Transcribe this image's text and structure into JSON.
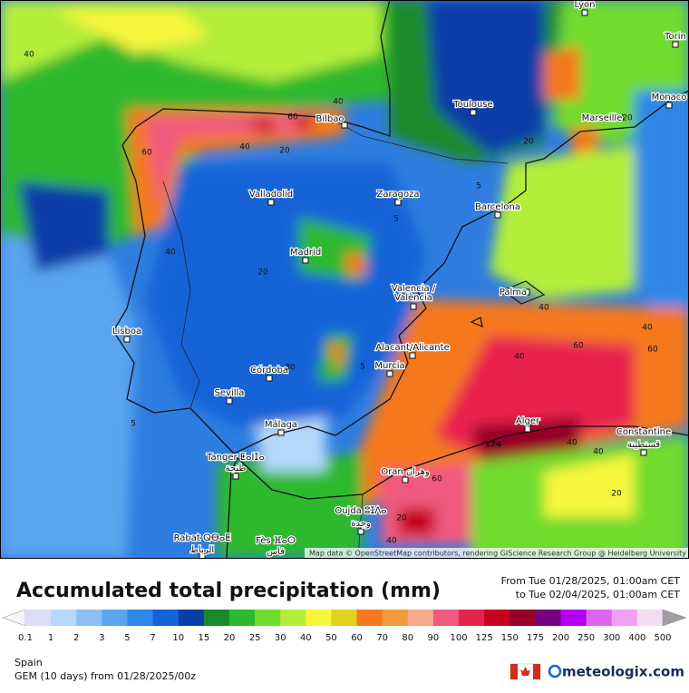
{
  "map": {
    "places": [
      "Lyon",
      "Torin",
      "Monaco",
      "Toulouse",
      "Marseille",
      "Bilbao",
      "Valladolid",
      "Zaragoza",
      "Barcelona",
      "Madrid",
      "Palma",
      "Valencia /",
      "València",
      "Lisboa",
      "Alacant/Alicante",
      "Murcia",
      "Córdoba",
      "Sevilla",
      "Alger",
      "Constantine",
      "قسنطينة",
      "Málaga",
      "Tanger ⵟⴰⵏⵊⴰ",
      "طنجة",
      "Oran وهران",
      "Oujda ⵓⵊⴷⴰ",
      "وجدة",
      "Rabat ⵕⴱⴰⵟ",
      "الرباط",
      "Fès ⴼⴰⵙ",
      "فاس"
    ],
    "contour_labels": [
      40,
      40,
      60,
      40,
      20,
      60,
      40,
      20,
      5,
      5,
      20,
      20,
      40,
      40,
      60,
      40,
      60,
      5,
      30,
      174,
      40,
      40,
      60,
      40,
      20,
      20,
      5
    ],
    "attribution": "Map data © OpenStreetMap contributors, rendering GIScience Research Group @ Heidelberg University"
  },
  "title": "Accumulated total precipitation (mm)",
  "period": {
    "from": "From Tue 01/28/2025, 01:00am CET",
    "to": "to Tue 02/04/2025, 01:00am CET"
  },
  "legend": {
    "ticks": [
      0.1,
      1,
      2,
      3,
      5,
      7,
      10,
      15,
      20,
      25,
      30,
      40,
      50,
      60,
      70,
      80,
      90,
      100,
      125,
      150,
      175,
      200,
      250,
      300,
      400,
      500
    ],
    "colors": [
      "#f4f4fb",
      "#dcdcf5",
      "#b4d8fa",
      "#8cc0f5",
      "#5aa5f0",
      "#2f87e8",
      "#1464d8",
      "#0a3ea8",
      "#1a8a2a",
      "#2db82d",
      "#6fdc2f",
      "#b4ee3a",
      "#f5f53c",
      "#e1d21e",
      "#f5781e",
      "#f59a3c",
      "#f5aa8c",
      "#f05a7e",
      "#e8224e",
      "#c8001e",
      "#960028",
      "#780080",
      "#b400f0",
      "#dc64f0",
      "#f0a0f0",
      "#f5dcf5",
      "#d2d2d2",
      "#a0a0a0"
    ]
  },
  "footer": {
    "region": "Spain",
    "model": "GEM (10 days) from 01/28/2025/00z",
    "brand": "meteologix.com"
  }
}
